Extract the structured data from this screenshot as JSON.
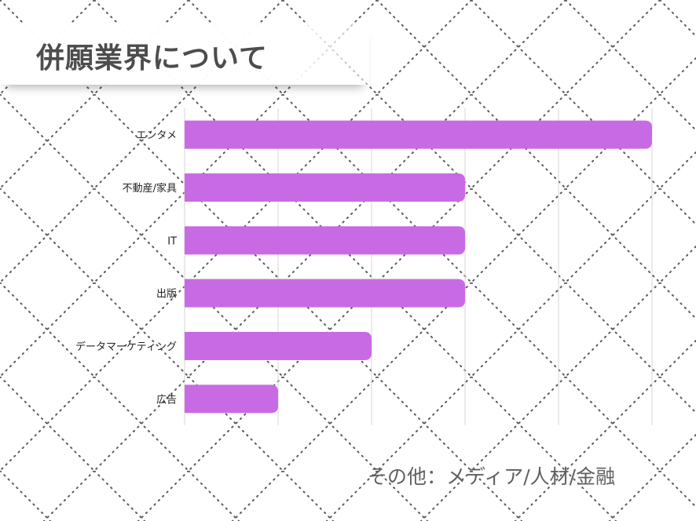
{
  "title": "併願業界について",
  "footnote": "その他：メディア/人材/金融",
  "colors": {
    "bar": "#c96ae5",
    "grid": "#d4d4d4",
    "title": "#4d4d4d",
    "footnote": "#606060",
    "pattern": "#5a5a5a"
  },
  "chart_data": {
    "type": "bar",
    "orientation": "horizontal",
    "categories": [
      "エンタメ",
      "不動産/家具",
      "IT",
      "出版",
      "データマーケティング",
      "広告"
    ],
    "values": [
      5,
      3,
      3,
      3,
      2,
      1
    ],
    "xlim": [
      0,
      5
    ],
    "grid": true,
    "legend": "none"
  }
}
